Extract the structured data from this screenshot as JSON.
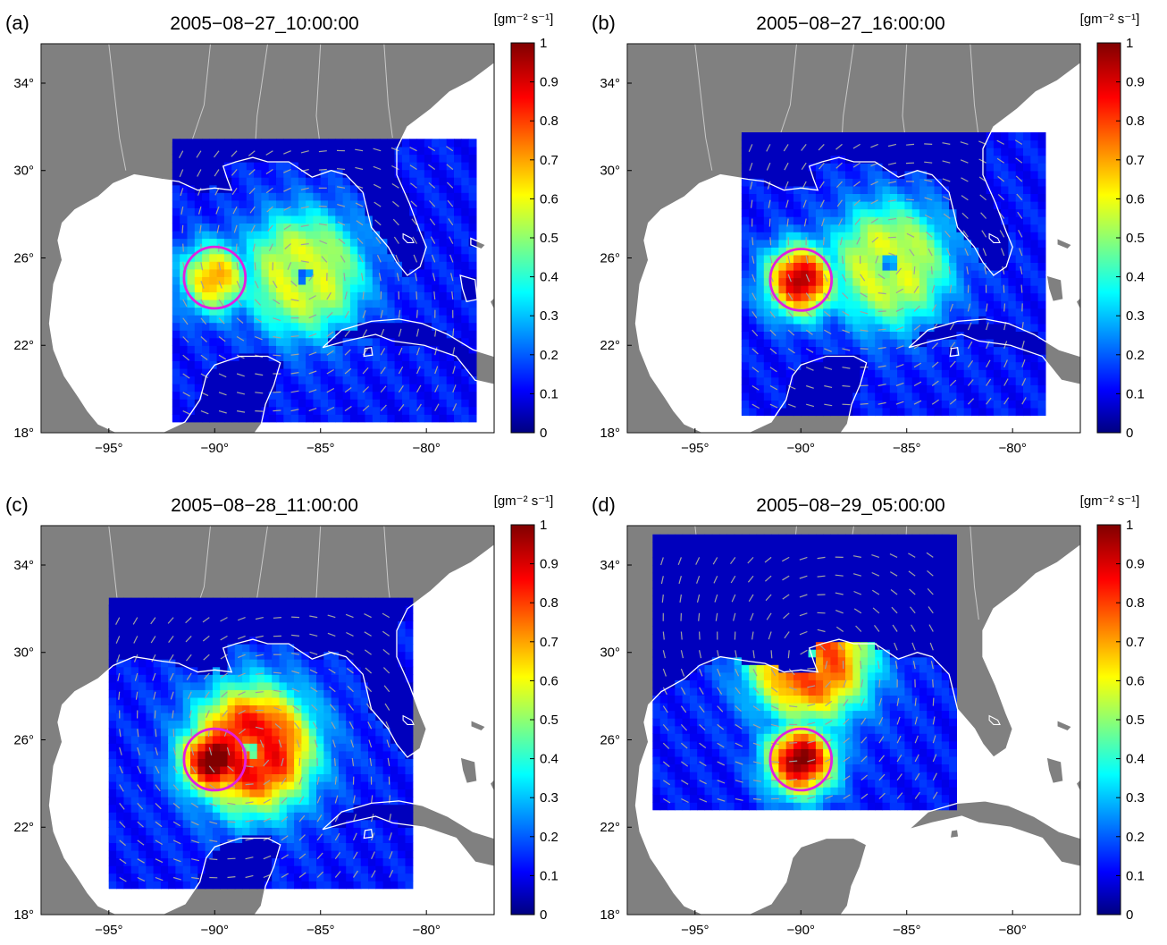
{
  "figure": {
    "colorbar_unit": "[gm⁻² s⁻¹]",
    "colorbar_ticks": [
      "0",
      "0.1",
      "0.2",
      "0.3",
      "0.4",
      "0.5",
      "0.6",
      "0.7",
      "0.8",
      "0.9",
      "1"
    ],
    "lon_ticks": [
      "−95°",
      "−90°",
      "−85°",
      "−80°"
    ],
    "lat_ticks": [
      "18°",
      "22°",
      "26°",
      "30°",
      "34°"
    ],
    "land_color": "#808080",
    "coast_color": "#ffffff",
    "circle_color": "#e020e0",
    "arrow_color": "#a0a0a0"
  },
  "panels": [
    {
      "label": "(a)",
      "title": "2005−08−27_10:00:00",
      "domain": {
        "lon_min": -92.0,
        "lon_max": -78.0,
        "lat_min": 18.5,
        "lat_max": 31.3
      },
      "circle": {
        "lon": -90.0,
        "lat": 25.1,
        "radius_deg": 1.45
      },
      "eye": {
        "lon": -85.8,
        "lat": 25.3
      },
      "flux_peak": 0.6,
      "storm_flux": 0.3
    },
    {
      "label": "(b)",
      "title": "2005−08−27_16:00:00",
      "domain": {
        "lon_min": -92.8,
        "lon_max": -78.8,
        "lat_min": 18.8,
        "lat_max": 31.6
      },
      "circle": {
        "lon": -90.0,
        "lat": 25.0,
        "radius_deg": 1.45
      },
      "eye": {
        "lon": -85.8,
        "lat": 25.7
      },
      "flux_peak": 0.85,
      "storm_flux": 0.3
    },
    {
      "label": "(c)",
      "title": "2005−08−28_11:00:00",
      "domain": {
        "lon_min": -95.0,
        "lon_max": -81.0,
        "lat_min": 19.2,
        "lat_max": 32.2
      },
      "circle": {
        "lon": -90.0,
        "lat": 25.1,
        "radius_deg": 1.45
      },
      "eye": {
        "lon": -88.2,
        "lat": 25.6
      },
      "flux_peak": 0.95,
      "storm_flux": 0.5
    },
    {
      "label": "(d)",
      "title": "2005−08−29_05:00:00",
      "domain": {
        "lon_min": -97.0,
        "lon_max": -83.0,
        "lat_min": 22.8,
        "lat_max": 35.4
      },
      "circle": {
        "lon": -90.0,
        "lat": 25.1,
        "radius_deg": 1.45
      },
      "eye": {
        "lon": -89.6,
        "lat": 29.7
      },
      "flux_peak": 0.9,
      "storm_flux": 0.45
    }
  ]
}
